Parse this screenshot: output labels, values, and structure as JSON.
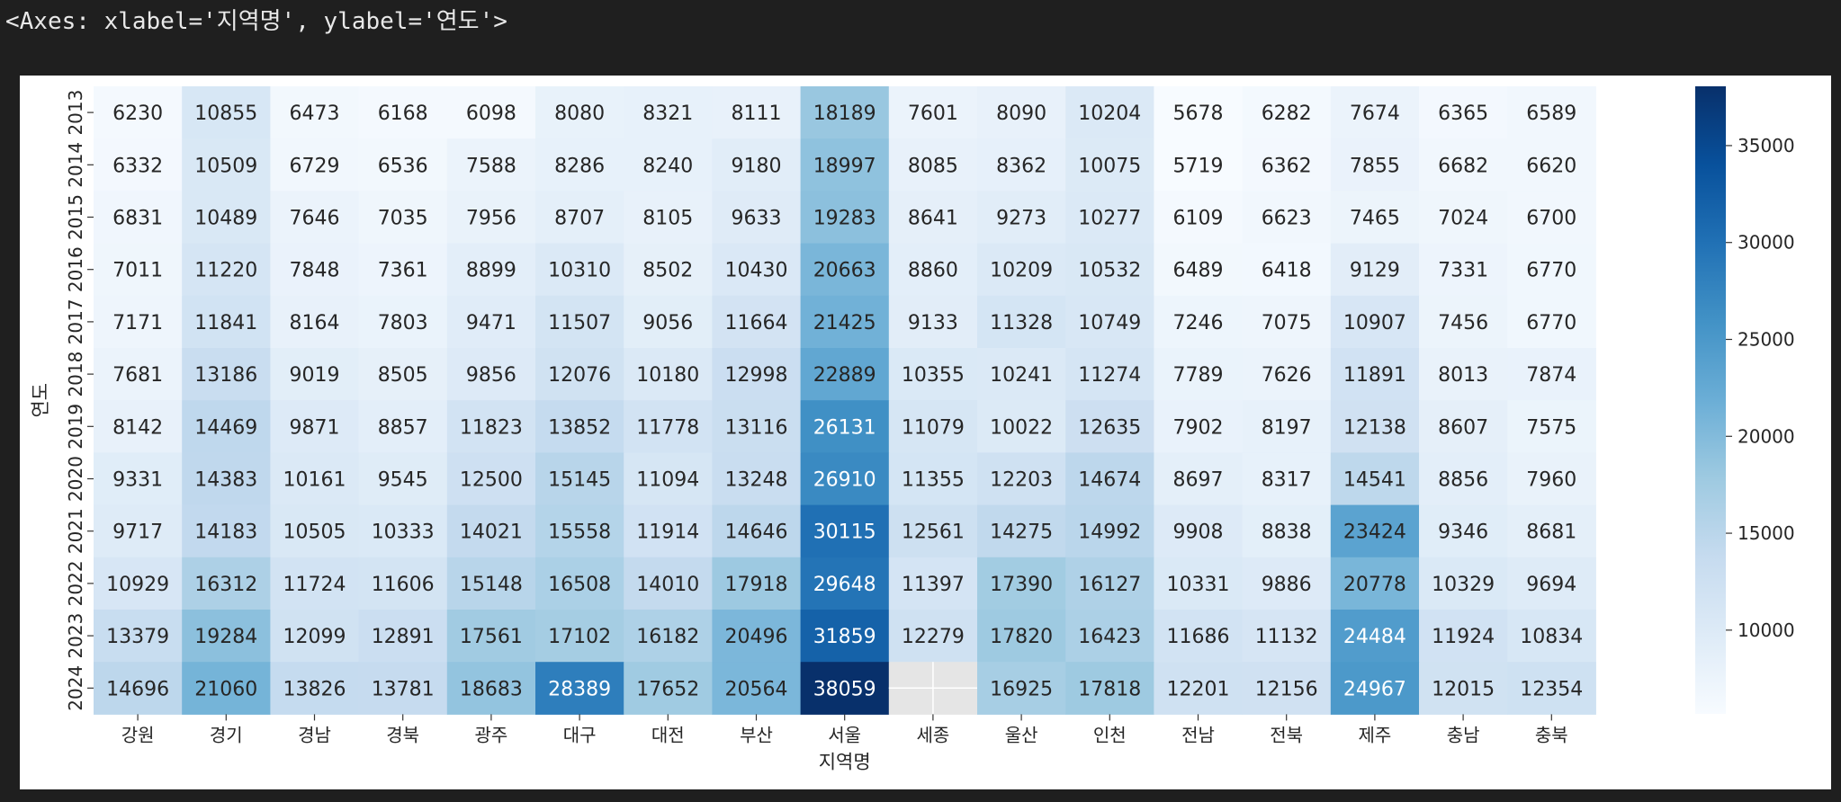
{
  "output_repr": "<Axes: xlabel='지역명', ylabel='연도'>",
  "chart_data": {
    "type": "heatmap",
    "xlabel": "지역명",
    "ylabel": "연도",
    "categories": [
      "강원",
      "경기",
      "경남",
      "경북",
      "광주",
      "대구",
      "대전",
      "부산",
      "서울",
      "세종",
      "울산",
      "인천",
      "전남",
      "전북",
      "제주",
      "충남",
      "충북"
    ],
    "years": [
      "2013",
      "2014",
      "2015",
      "2016",
      "2017",
      "2018",
      "2019",
      "2020",
      "2021",
      "2022",
      "2023",
      "2024"
    ],
    "values": [
      [
        6230,
        10855,
        6473,
        6168,
        6098,
        8080,
        8321,
        8111,
        18189,
        7601,
        8090,
        10204,
        5678,
        6282,
        7674,
        6365,
        6589
      ],
      [
        6332,
        10509,
        6729,
        6536,
        7588,
        8286,
        8240,
        9180,
        18997,
        8085,
        8362,
        10075,
        5719,
        6362,
        7855,
        6682,
        6620
      ],
      [
        6831,
        10489,
        7646,
        7035,
        7956,
        8707,
        8105,
        9633,
        19283,
        8641,
        9273,
        10277,
        6109,
        6623,
        7465,
        7024,
        6700
      ],
      [
        7011,
        11220,
        7848,
        7361,
        8899,
        10310,
        8502,
        10430,
        20663,
        8860,
        10209,
        10532,
        6489,
        6418,
        9129,
        7331,
        6770
      ],
      [
        7171,
        11841,
        8164,
        7803,
        9471,
        11507,
        9056,
        11664,
        21425,
        9133,
        11328,
        10749,
        7246,
        7075,
        10907,
        7456,
        6770
      ],
      [
        7681,
        13186,
        9019,
        8505,
        9856,
        12076,
        10180,
        12998,
        22889,
        10355,
        10241,
        11274,
        7789,
        7626,
        11891,
        8013,
        7874
      ],
      [
        8142,
        14469,
        9871,
        8857,
        11823,
        13852,
        11778,
        13116,
        26131,
        11079,
        10022,
        12635,
        7902,
        8197,
        12138,
        8607,
        7575
      ],
      [
        9331,
        14383,
        10161,
        9545,
        12500,
        15145,
        11094,
        13248,
        26910,
        11355,
        12203,
        14674,
        8697,
        8317,
        14541,
        8856,
        7960
      ],
      [
        9717,
        14183,
        10505,
        10333,
        14021,
        15558,
        11914,
        14646,
        30115,
        12561,
        14275,
        14992,
        9908,
        8838,
        23424,
        9346,
        8681
      ],
      [
        10929,
        16312,
        11724,
        11606,
        15148,
        16508,
        14010,
        17918,
        29648,
        11397,
        17390,
        16127,
        10331,
        9886,
        20778,
        10329,
        9694
      ],
      [
        13379,
        19284,
        12099,
        12891,
        17561,
        17102,
        16182,
        20496,
        31859,
        12279,
        17820,
        16423,
        11686,
        11132,
        24484,
        11924,
        10834
      ],
      [
        14696,
        21060,
        13826,
        13781,
        18683,
        28389,
        17652,
        20564,
        38059,
        null,
        16925,
        17818,
        12201,
        12156,
        24967,
        12015,
        12354
      ]
    ],
    "colormap": "Blues",
    "missing_color": "#e5e5e5",
    "colorbar": {
      "range": [
        5678,
        38059
      ],
      "ticks": [
        "10000",
        "15000",
        "20000",
        "25000",
        "30000",
        "35000"
      ]
    }
  }
}
